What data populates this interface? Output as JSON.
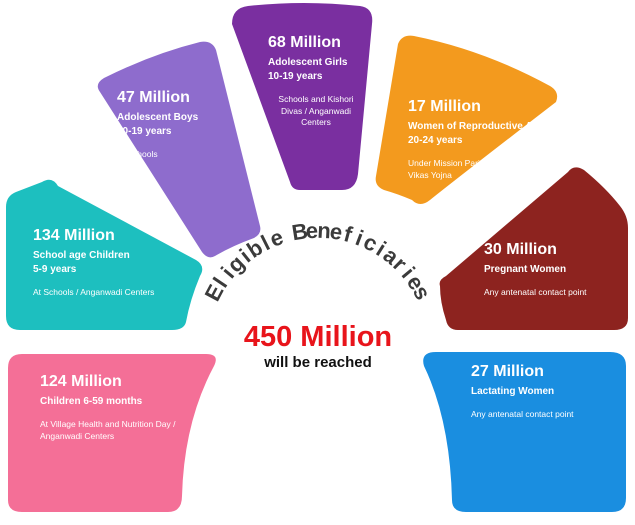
{
  "title": "Eligible Beneficiaries",
  "center": {
    "total": "450 Million",
    "caption": "will be reached"
  },
  "segments": [
    {
      "key": "children",
      "count": "124 Million",
      "group": "Children 6-59 months",
      "age": "",
      "location": "At Village Health and Nutrition Day / Anganwadi Centers",
      "color": "#f46f97"
    },
    {
      "key": "school",
      "count": "134 Million",
      "group": "School age Children",
      "age": "5-9 years",
      "location": "At Schools / Anganwadi Centers",
      "color": "#1dbfbf"
    },
    {
      "key": "boys",
      "count": "47 Million",
      "group": "Adolescent Boys",
      "age": "10-19 years",
      "location": "At Schools",
      "color": "#8e6ccd"
    },
    {
      "key": "girls",
      "count": "68 Million",
      "group": "Adolescent Girls",
      "age": "10-19 years",
      "location": "Schools and Kishori Divas / Anganwadi Centers",
      "color": "#7a2fa0"
    },
    {
      "key": "women",
      "count": "17 Million",
      "group": "Women of Reproductive Age",
      "age": "20-24 years",
      "location": "Under  Mission Parivar Vikas Yojna",
      "color": "#f39a1e"
    },
    {
      "key": "pregnant",
      "count": "30 Million",
      "group": "Pregnant Women",
      "age": "",
      "location": "Any antenatal contact point",
      "color": "#8d231f"
    },
    {
      "key": "lactating",
      "count": "27 Million",
      "group": "Lactating Women",
      "age": "",
      "location": "Any antenatal contact point",
      "color": "#1a8ee0"
    }
  ]
}
